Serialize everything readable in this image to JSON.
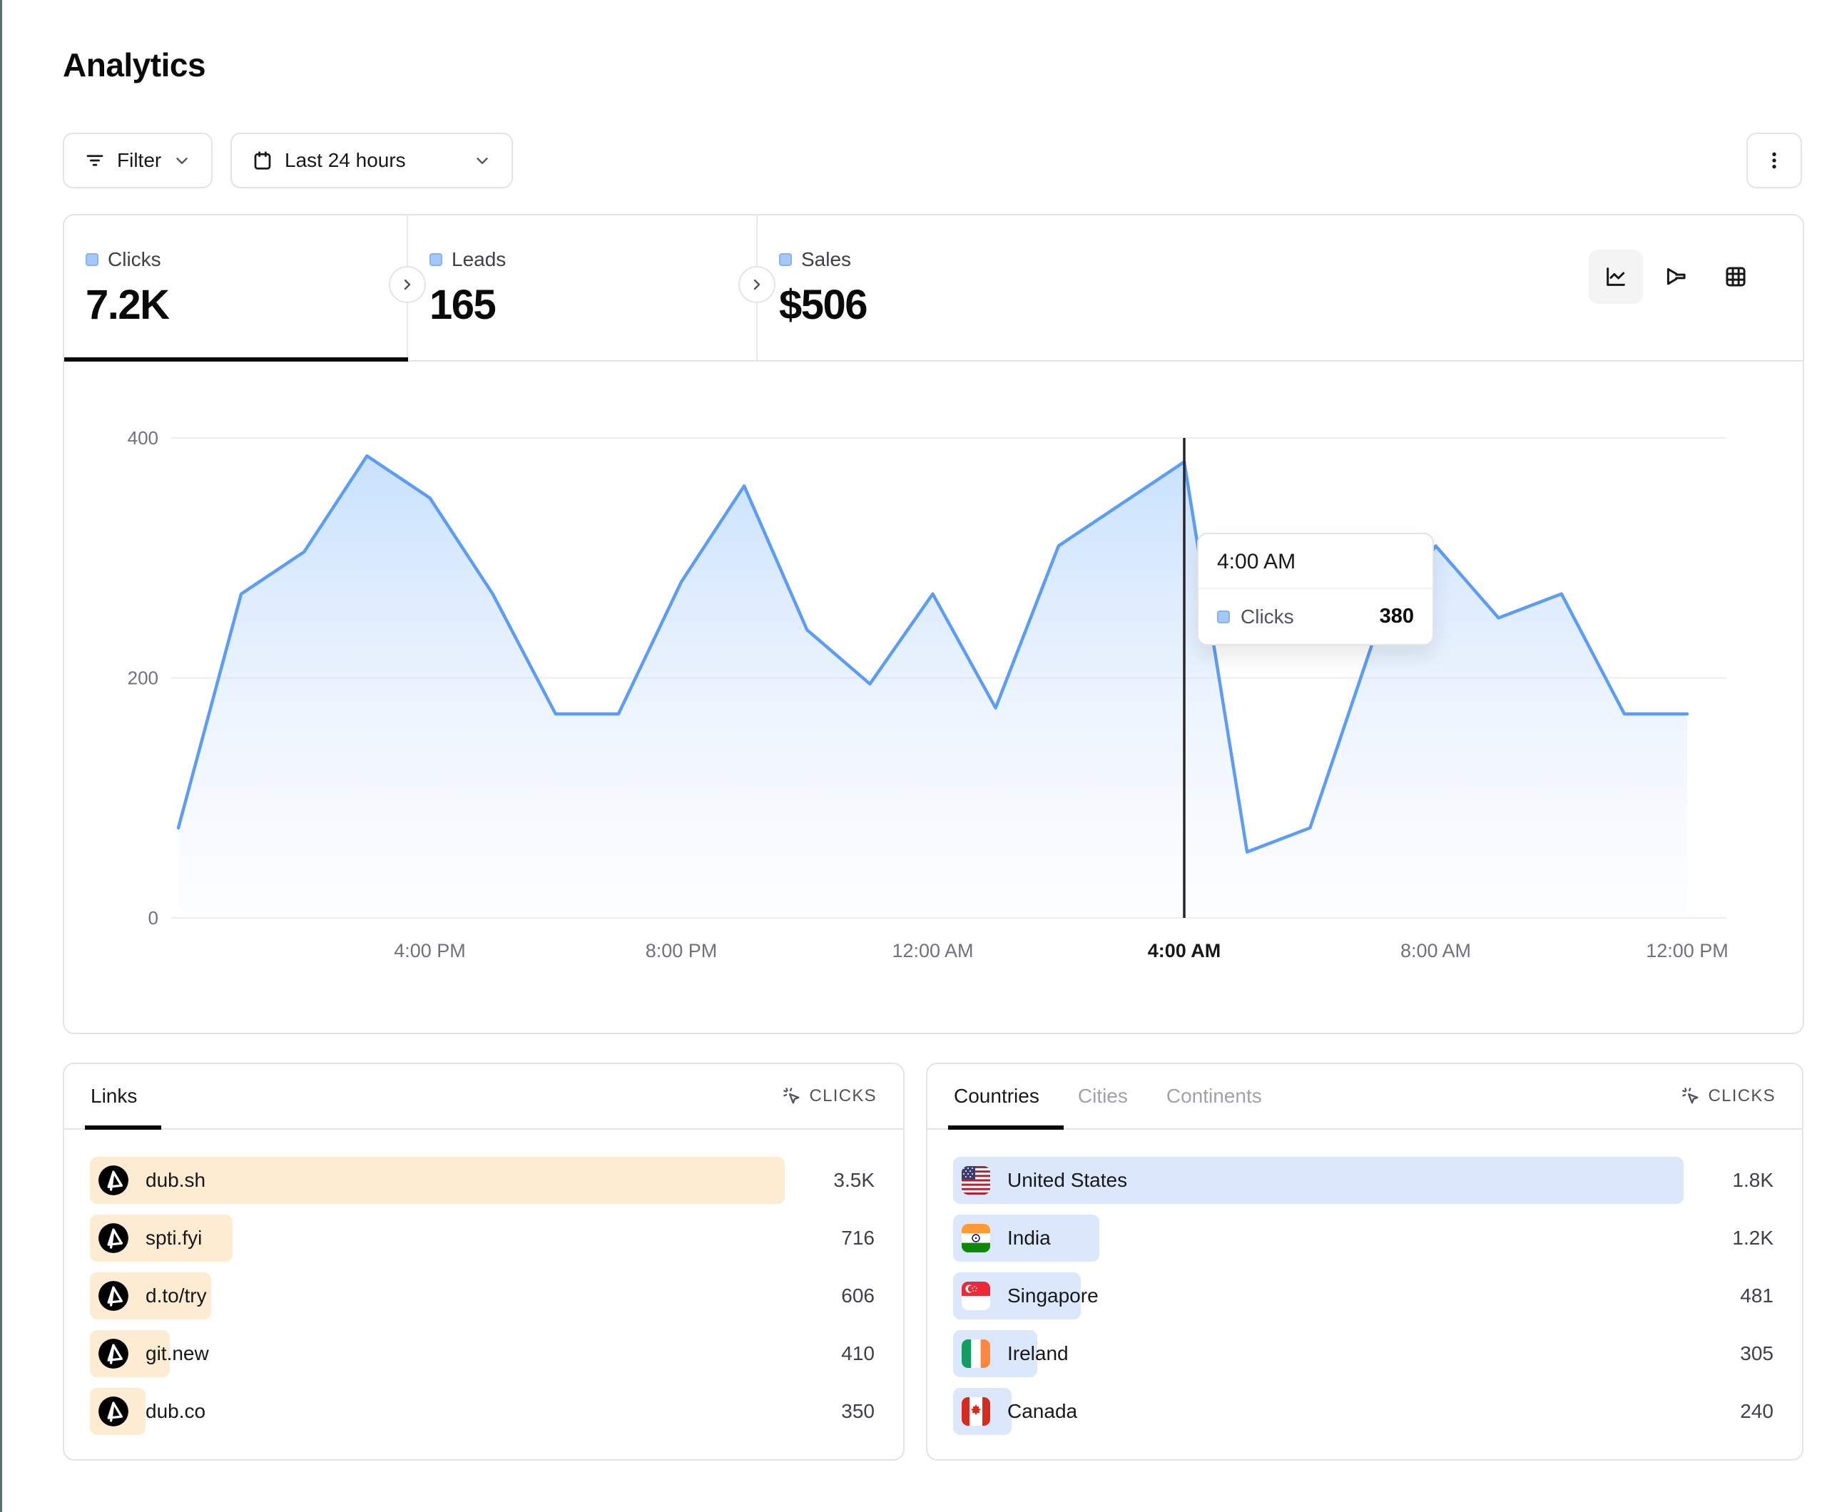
{
  "page": {
    "title": "Analytics"
  },
  "toolbar": {
    "filter_label": "Filter",
    "date_range_label": "Last 24 hours",
    "more_menu_icon": "kebab-menu-icon"
  },
  "stats": {
    "tabs": [
      {
        "label": "Clicks",
        "value": "7.2K",
        "active": true
      },
      {
        "label": "Leads",
        "value": "165",
        "active": false
      },
      {
        "label": "Sales",
        "value": "$506",
        "active": false
      }
    ]
  },
  "view_toggle": {
    "options": [
      "line-chart",
      "funnel",
      "table-grid"
    ],
    "selected": "line-chart"
  },
  "chart_data": {
    "type": "area",
    "title": "Clicks over last 24 hours",
    "x": [
      "12:00 PM",
      "1:00 PM",
      "2:00 PM",
      "3:00 PM",
      "4:00 PM",
      "5:00 PM",
      "6:00 PM",
      "7:00 PM",
      "8:00 PM",
      "9:00 PM",
      "10:00 PM",
      "11:00 PM",
      "12:00 AM",
      "1:00 AM",
      "2:00 AM",
      "3:00 AM",
      "4:00 AM",
      "5:00 AM",
      "6:00 AM",
      "7:00 AM",
      "8:00 AM",
      "9:00 AM",
      "10:00 AM",
      "11:00 AM",
      "12:00 PM"
    ],
    "series": [
      {
        "name": "Clicks",
        "values": [
          75,
          270,
          305,
          385,
          350,
          270,
          170,
          170,
          280,
          360,
          240,
          195,
          270,
          175,
          310,
          345,
          380,
          55,
          75,
          230,
          310,
          250,
          270,
          170,
          170
        ]
      }
    ],
    "ylim": [
      0,
      400
    ],
    "yticks": [
      0,
      200,
      400
    ],
    "x_tick_indices": [
      4,
      8,
      12,
      16,
      20,
      24
    ],
    "x_tick_labels": [
      "4:00 PM",
      "8:00 PM",
      "12:00 AM",
      "4:00 AM",
      "8:00 AM",
      "12:00 PM"
    ],
    "grid": "horizontal",
    "line_color": "#5b9df6",
    "highlight": {
      "index": 16,
      "x": "4:00 AM",
      "series": "Clicks",
      "value": 380
    }
  },
  "tooltip": {
    "title": "4:00 AM",
    "series": "Clicks",
    "value": "380"
  },
  "links_panel": {
    "tabs": [
      {
        "label": "Links",
        "active": true
      }
    ],
    "metric_label": "CLICKS",
    "bar_color": "#fdecd2",
    "rows": [
      {
        "label": "dub.sh",
        "value": "3.5K",
        "bar_pct": 100,
        "icon": "dub-logo"
      },
      {
        "label": "spti.fyi",
        "value": "716",
        "bar_pct": 20.5,
        "icon": "dub-logo"
      },
      {
        "label": "d.to/try",
        "value": "606",
        "bar_pct": 17.5,
        "icon": "dub-logo"
      },
      {
        "label": "git.new",
        "value": "410",
        "bar_pct": 11.5,
        "icon": "dub-logo"
      },
      {
        "label": "dub.co",
        "value": "350",
        "bar_pct": 8,
        "icon": "dub-logo"
      }
    ]
  },
  "geo_panel": {
    "tabs": [
      {
        "label": "Countries",
        "active": true
      },
      {
        "label": "Cities",
        "active": false
      },
      {
        "label": "Continents",
        "active": false
      }
    ],
    "metric_label": "CLICKS",
    "bar_color": "#dbe8fc",
    "rows": [
      {
        "label": "United States",
        "value": "1.8K",
        "bar_pct": 100,
        "flag": "us",
        "icon": "flag-united-states"
      },
      {
        "label": "India",
        "value": "1.2K",
        "bar_pct": 20,
        "flag": "in",
        "icon": "flag-india"
      },
      {
        "label": "Singapore",
        "value": "481",
        "bar_pct": 17.5,
        "flag": "sg",
        "icon": "flag-singapore"
      },
      {
        "label": "Ireland",
        "value": "305",
        "bar_pct": 11.5,
        "flag": "ie",
        "icon": "flag-ireland"
      },
      {
        "label": "Canada",
        "value": "240",
        "bar_pct": 8,
        "flag": "ca",
        "icon": "flag-canada"
      }
    ]
  },
  "colors": {
    "accent_blue": "#5b9df6",
    "legend_square": "#a5c8f7",
    "links_bar": "#fdecd2",
    "geo_bar": "#dbe8fc",
    "active_underline": "#09090b",
    "border": "#e4e4e7",
    "muted_text": "#52525b",
    "edge_strip": "#54716e"
  }
}
